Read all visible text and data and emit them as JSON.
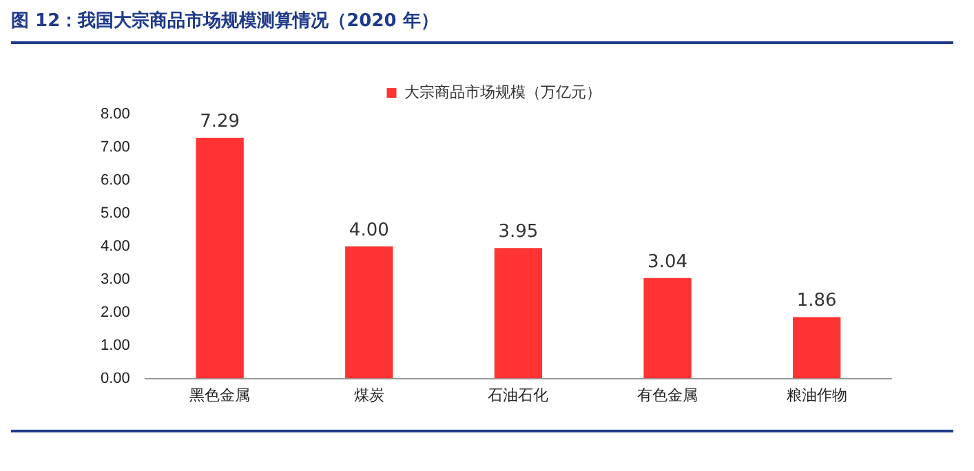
{
  "chart_data": {
    "type": "bar",
    "title": "图 12：我国大宗商品市场规模测算情况（2020 年）",
    "categories": [
      "黑色金属",
      "煤炭",
      "石油石化",
      "有色金属",
      "粮油作物"
    ],
    "series": [
      {
        "name": "大宗商品市场规模（万亿元）",
        "color": "#ff3333",
        "values": [
          7.29,
          4.0,
          3.95,
          3.04,
          1.86
        ],
        "value_labels": [
          "7.29",
          "4.00",
          "3.95",
          "3.04",
          "1.86"
        ]
      }
    ],
    "ylim": [
      0,
      8
    ],
    "yticks": [
      {
        "value": 0,
        "label": "0.00"
      },
      {
        "value": 1,
        "label": "1.00"
      },
      {
        "value": 2,
        "label": "2.00"
      },
      {
        "value": 3,
        "label": "3.00"
      },
      {
        "value": 4,
        "label": "4.00"
      },
      {
        "value": 5,
        "label": "5.00"
      },
      {
        "value": 6,
        "label": "6.00"
      },
      {
        "value": 7,
        "label": "7.00"
      },
      {
        "value": 8,
        "label": "8.00"
      }
    ],
    "grid": false,
    "legend": "top"
  }
}
